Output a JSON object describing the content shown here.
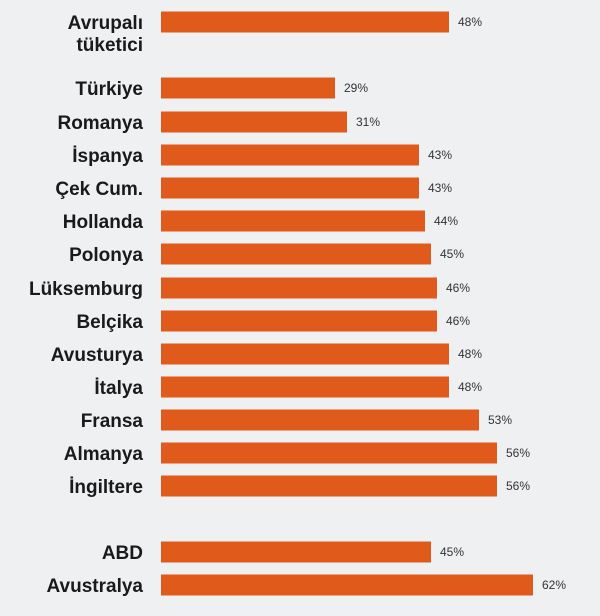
{
  "chart_data": {
    "type": "bar",
    "orientation": "horizontal",
    "categories": [
      [
        "Avrupalı",
        "tüketici"
      ],
      "Türkiye",
      "Romanya",
      "İspanya",
      "Çek Cum.",
      "Hollanda",
      "Polonya",
      "Lüksemburg",
      "Belçika",
      "Avusturya",
      "İtalya",
      "Fransa",
      "Almanya",
      "İngiltere",
      "ABD",
      "Avustralya"
    ],
    "values": [
      48,
      29,
      31,
      43,
      43,
      44,
      45,
      46,
      46,
      48,
      48,
      53,
      56,
      56,
      45,
      62
    ],
    "value_labels": [
      "48%",
      "29%",
      "31%",
      "43%",
      "43%",
      "44%",
      "45%",
      "46%",
      "46%",
      "48%",
      "48%",
      "53%",
      "56%",
      "56%",
      "45%",
      "62%"
    ],
    "title": "",
    "xlabel": "",
    "ylabel": "",
    "xlim": [
      0,
      100
    ],
    "grid": false,
    "bar_color": "#e05a1b",
    "background_color": "#eef0f1"
  }
}
